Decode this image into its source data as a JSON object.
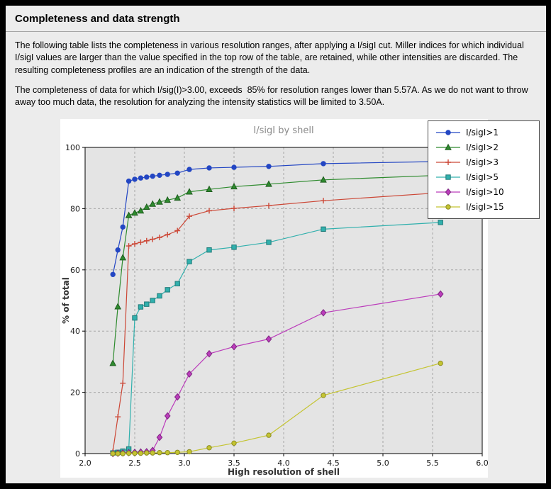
{
  "frame": {
    "outer_bg": "#000000",
    "page_bg": "#ececec"
  },
  "header": {
    "title": "Completeness and data strength"
  },
  "paragraphs": {
    "p1": "The following table lists the completeness in various resolution ranges, after applying a I/sigI cut. Miller indices for which individual I/sigI values are larger than the value specified in the top row of the table, are retained, while other intensities are discarded. The resulting completeness profiles are an indication of the strength of the data.",
    "p2": "The completeness of data for which I/sig(I)>3.00, exceeds  85% for resolution ranges lower than 5.57A. As we do not want to throw away too much data, the resolution for analyzing the intensity statistics will be limited to 3.50A."
  },
  "chart_data": {
    "type": "line",
    "title": "I/sigI by shell",
    "xlabel": "High resolution of shell",
    "ylabel": "% of total",
    "xlim": [
      2.0,
      6.0
    ],
    "ylim": [
      0,
      100
    ],
    "xticks": [
      2.0,
      2.5,
      3.0,
      3.5,
      4.0,
      4.5,
      5.0,
      5.5,
      6.0
    ],
    "xtick_labels": [
      "2.0",
      "2.5",
      "3.0",
      "3.5",
      "4.0",
      "4.5",
      "5.0",
      "5.5",
      "6.0"
    ],
    "yticks": [
      0,
      20,
      40,
      60,
      80,
      100
    ],
    "ytick_labels": [
      "0",
      "20",
      "40",
      "60",
      "80",
      "100"
    ],
    "grid": "dashed",
    "grid_color": "#a6a6a6",
    "plot_bg": "#e4e4e4",
    "figure_bg": "#ffffff",
    "legend_position": "top-right",
    "x": [
      2.28,
      2.33,
      2.38,
      2.44,
      2.5,
      2.56,
      2.62,
      2.68,
      2.75,
      2.83,
      2.93,
      3.05,
      3.25,
      3.5,
      3.85,
      4.4,
      5.58
    ],
    "series": [
      {
        "name": "I/sigI>1",
        "color": "#2346c3",
        "edge": "#2346c3",
        "marker": "circle",
        "values": [
          58.5,
          66.5,
          74.0,
          89.0,
          89.6,
          90.0,
          90.3,
          90.6,
          90.9,
          91.2,
          91.6,
          92.8,
          93.3,
          93.5,
          93.8,
          94.7,
          95.4
        ]
      },
      {
        "name": "I/sigI>2",
        "color": "#2e8b2e",
        "edge": "#1e5c1e",
        "marker": "triangle",
        "values": [
          29.5,
          48.0,
          64.0,
          77.8,
          78.6,
          79.3,
          80.5,
          81.5,
          82.2,
          82.8,
          83.5,
          85.5,
          86.3,
          87.2,
          88.0,
          89.4,
          90.9
        ]
      },
      {
        "name": "I/sigI>3",
        "color": "#cc4736",
        "edge": "#cc4736",
        "marker": "plus",
        "values": [
          0.7,
          12.0,
          23.0,
          67.8,
          68.5,
          69.0,
          69.5,
          70.0,
          70.6,
          71.5,
          72.8,
          77.5,
          79.3,
          80.1,
          81.0,
          82.6,
          85.2
        ]
      },
      {
        "name": "I/sigI>5",
        "color": "#31b0ad",
        "edge": "#1f7a78",
        "marker": "square",
        "values": [
          0.2,
          0.4,
          0.8,
          1.5,
          44.3,
          47.9,
          48.8,
          50.0,
          51.5,
          53.5,
          55.5,
          62.7,
          66.5,
          67.4,
          69.0,
          73.3,
          75.5
        ]
      },
      {
        "name": "I/sigI>10",
        "color": "#bb3cbb",
        "edge": "#7e2681",
        "marker": "diamond",
        "values": [
          0.0,
          0.1,
          0.2,
          0.3,
          0.4,
          0.5,
          0.6,
          1.0,
          5.3,
          12.3,
          18.5,
          26.0,
          32.6,
          34.9,
          37.4,
          46.0,
          52.1
        ]
      },
      {
        "name": "I/sigI>15",
        "color": "#c4c431",
        "edge": "#8b8b22",
        "marker": "circle",
        "values": [
          0.0,
          0.0,
          0.0,
          0.1,
          0.1,
          0.1,
          0.2,
          0.2,
          0.3,
          0.3,
          0.4,
          0.6,
          1.9,
          3.4,
          6.0,
          19.0,
          29.5
        ]
      }
    ]
  }
}
